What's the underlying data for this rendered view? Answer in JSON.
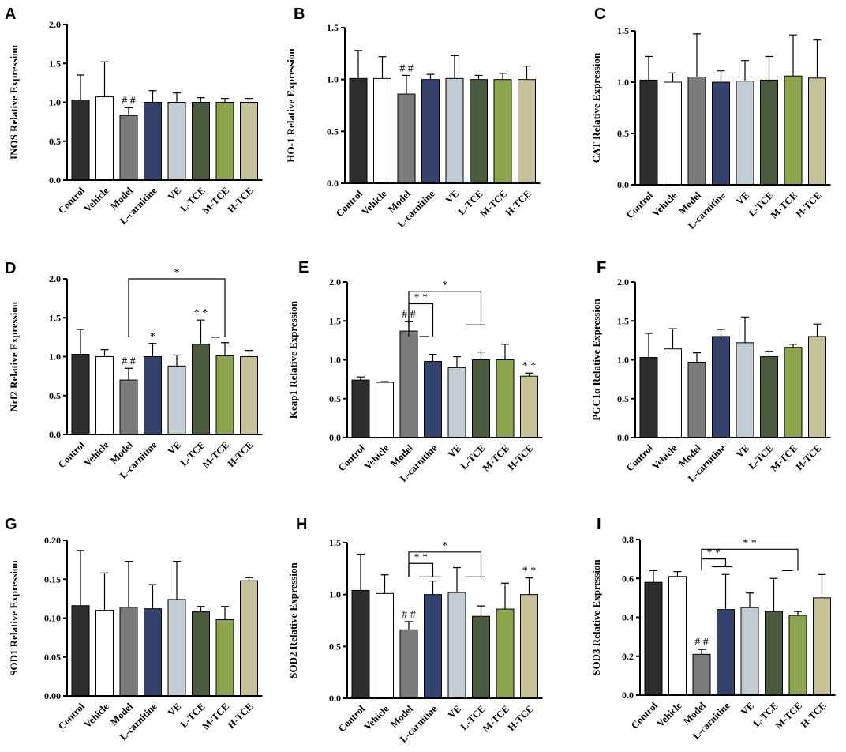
{
  "colors": {
    "Control": "#2e2e2e",
    "Vehicle": "#ffffff",
    "Model": "#7b7b7b",
    "L-carnitine": "#34436e",
    "VE": "#c2ccd3",
    "L-TCE": "#4b5a3d",
    "M-TCE": "#8ca44c",
    "H-TCE": "#c5c297"
  },
  "chart_data": [
    {
      "panel": "A",
      "type": "bar",
      "ylabel": "INOS Relative Expression",
      "ylim": [
        0,
        2.0
      ],
      "yticks": [
        "0.0",
        "0.5",
        "1.0",
        "1.5",
        "2.0"
      ],
      "categories": [
        "Control",
        "Vehicle",
        "Model",
        "L-carnitine",
        "VE",
        "L-TCE",
        "M-TCE",
        "H-TCE"
      ],
      "values": [
        1.03,
        1.07,
        0.83,
        1.0,
        1.0,
        1.0,
        1.0,
        1.0
      ],
      "errors": [
        0.32,
        0.45,
        0.1,
        0.15,
        0.12,
        0.06,
        0.05,
        0.05
      ],
      "annotations": [
        {
          "bar": 2,
          "text": "##"
        }
      ],
      "brackets": []
    },
    {
      "panel": "B",
      "type": "bar",
      "ylabel": "HO-1 Relative Expression",
      "ylim": [
        0,
        1.5
      ],
      "yticks": [
        "0.0",
        "0.5",
        "1.0",
        "1.5"
      ],
      "categories": [
        "Control",
        "Vehicle",
        "Model",
        "L-carnitine",
        "VE",
        "L-TCE",
        "M-TCE",
        "H-TCE"
      ],
      "values": [
        1.01,
        1.01,
        0.86,
        1.0,
        1.01,
        1.0,
        1.0,
        1.0
      ],
      "errors": [
        0.27,
        0.21,
        0.18,
        0.05,
        0.22,
        0.04,
        0.06,
        0.13
      ],
      "annotations": [
        {
          "bar": 2,
          "text": "##"
        }
      ],
      "brackets": []
    },
    {
      "panel": "C",
      "type": "bar",
      "ylabel": "CAT Relative Expression",
      "ylim": [
        0,
        1.5
      ],
      "yticks": [
        "0.0",
        "0.5",
        "1.0",
        "1.5"
      ],
      "categories": [
        "Control",
        "Vehicle",
        "Model",
        "L-carnitine",
        "VE",
        "L-TCE",
        "M-TCE",
        "H-TCE"
      ],
      "values": [
        1.02,
        1.0,
        1.05,
        1.0,
        1.01,
        1.02,
        1.06,
        1.04
      ],
      "errors": [
        0.23,
        0.09,
        0.42,
        0.11,
        0.2,
        0.23,
        0.4,
        0.37
      ],
      "annotations": [],
      "brackets": []
    },
    {
      "panel": "D",
      "type": "bar",
      "ylabel": "Nrf2 Relative Expression",
      "ylim": [
        0,
        2.0
      ],
      "yticks": [
        "0.0",
        "0.5",
        "1.0",
        "1.5",
        "2.0"
      ],
      "categories": [
        "Control",
        "Vehicle",
        "Model",
        "L-carnitine",
        "VE",
        "L-TCE",
        "M-TCE",
        "H-TCE"
      ],
      "values": [
        1.03,
        1.0,
        0.7,
        1.0,
        0.88,
        1.16,
        1.01,
        1.0
      ],
      "errors": [
        0.32,
        0.09,
        0.15,
        0.17,
        0.14,
        0.31,
        0.17,
        0.08
      ],
      "annotations": [
        {
          "bar": 2,
          "text": "##"
        },
        {
          "bar": 3,
          "text": "*"
        },
        {
          "bar": 5,
          "text": "* *"
        }
      ],
      "brackets": [
        {
          "from": 2,
          "to": 6,
          "y": 2.0,
          "drop": 1.25,
          "label": "*",
          "underline": [
            5.8,
            6.15
          ]
        }
      ]
    },
    {
      "panel": "E",
      "type": "bar",
      "ylabel": "Keap1 Relative Expression",
      "ylim": [
        0,
        2.0
      ],
      "yticks": [
        "0.0",
        "0.5",
        "1.0",
        "1.5",
        "2.0"
      ],
      "categories": [
        "Control",
        "Vehicle",
        "Model",
        "L-carnitine",
        "VE",
        "L-TCE",
        "M-TCE",
        "H-TCE"
      ],
      "values": [
        0.74,
        0.71,
        1.37,
        0.98,
        0.9,
        1.0,
        1.0,
        0.79
      ],
      "errors": [
        0.04,
        0.01,
        0.12,
        0.09,
        0.14,
        0.1,
        0.2,
        0.04
      ],
      "annotations": [
        {
          "bar": 2,
          "text": "##"
        },
        {
          "bar": 7,
          "text": "* *"
        }
      ],
      "brackets": [
        {
          "from": 2,
          "to": 5,
          "y": 1.88,
          "drop": 1.45,
          "label": "*",
          "underline": [
            4.7,
            5.55
          ]
        },
        {
          "from": 2,
          "to": 3,
          "y": 1.72,
          "drop": 1.3,
          "label": "* *",
          "underline": [
            2.8,
            3.2
          ]
        }
      ]
    },
    {
      "panel": "F",
      "type": "bar",
      "ylabel": "PGC1α Relative Expression",
      "ylim": [
        0,
        2.0
      ],
      "yticks": [
        "0.0",
        "0.5",
        "1.0",
        "1.5",
        "2.0"
      ],
      "categories": [
        "Control",
        "Vehicle",
        "Model",
        "L-carnitine",
        "VE",
        "L-TCE",
        "M-TCE",
        "H-TCE"
      ],
      "values": [
        1.03,
        1.14,
        0.97,
        1.3,
        1.22,
        1.04,
        1.16,
        1.3
      ],
      "errors": [
        0.31,
        0.26,
        0.12,
        0.09,
        0.33,
        0.07,
        0.04,
        0.16
      ],
      "annotations": [],
      "brackets": []
    },
    {
      "panel": "G",
      "type": "bar",
      "ylabel": "SOD1 Relative Expression",
      "ylim": [
        0,
        0.2
      ],
      "yticks": [
        "0.00",
        "0.05",
        "0.10",
        "0.15",
        "0.20"
      ],
      "categories": [
        "Control",
        "Vehicle",
        "Model",
        "L-carnitine",
        "VE",
        "L-TCE",
        "M-TCE",
        "H-TCE"
      ],
      "values": [
        0.116,
        0.11,
        0.114,
        0.112,
        0.124,
        0.108,
        0.098,
        0.148
      ],
      "errors": [
        0.071,
        0.048,
        0.059,
        0.031,
        0.049,
        0.007,
        0.017,
        0.004
      ],
      "annotations": [],
      "brackets": []
    },
    {
      "panel": "H",
      "type": "bar",
      "ylabel": "SOD2 Relative Expression",
      "ylim": [
        0,
        1.5
      ],
      "yticks": [
        "0.0",
        "0.5",
        "1.0",
        "1.5"
      ],
      "categories": [
        "Control",
        "Vehicle",
        "Model",
        "L-carnitine",
        "VE",
        "L-TCE",
        "M-TCE",
        "H-TCE"
      ],
      "values": [
        1.04,
        1.01,
        0.66,
        1.0,
        1.02,
        0.79,
        0.86,
        1.0
      ],
      "errors": [
        0.35,
        0.18,
        0.08,
        0.13,
        0.24,
        0.1,
        0.25,
        0.16
      ],
      "annotations": [
        {
          "bar": 2,
          "text": "##"
        },
        {
          "bar": 7,
          "text": "* *"
        }
      ],
      "brackets": [
        {
          "from": 2,
          "to": 5,
          "y": 1.41,
          "drop": 1.17,
          "label": "*",
          "underline": [
            4.7,
            5.55
          ]
        },
        {
          "from": 2,
          "to": 3,
          "y": 1.3,
          "drop": 1.17,
          "label": "* *",
          "underline": [
            2.8,
            3.65
          ]
        }
      ]
    },
    {
      "panel": "I",
      "type": "bar",
      "ylabel": "SOD3 Relative Expression",
      "ylim": [
        0,
        0.8
      ],
      "yticks": [
        "0.0",
        "0.2",
        "0.4",
        "0.6",
        "0.8"
      ],
      "categories": [
        "Control",
        "Vehicle",
        "Model",
        "L-carnitine",
        "VE",
        "L-TCE",
        "M-TCE",
        "H-TCE"
      ],
      "values": [
        0.58,
        0.61,
        0.21,
        0.44,
        0.45,
        0.43,
        0.41,
        0.5
      ],
      "errors": [
        0.06,
        0.025,
        0.025,
        0.18,
        0.075,
        0.17,
        0.02,
        0.12
      ],
      "annotations": [
        {
          "bar": 2,
          "text": "##"
        }
      ],
      "brackets": [
        {
          "from": 2,
          "to": 6,
          "y": 0.75,
          "drop": 0.64,
          "label": "* *",
          "underline": [
            5.7,
            6.15
          ]
        },
        {
          "from": 2,
          "to": 3,
          "y": 0.7,
          "drop": 0.66,
          "label": "* *",
          "underline": [
            2.8,
            3.65
          ]
        }
      ]
    }
  ]
}
